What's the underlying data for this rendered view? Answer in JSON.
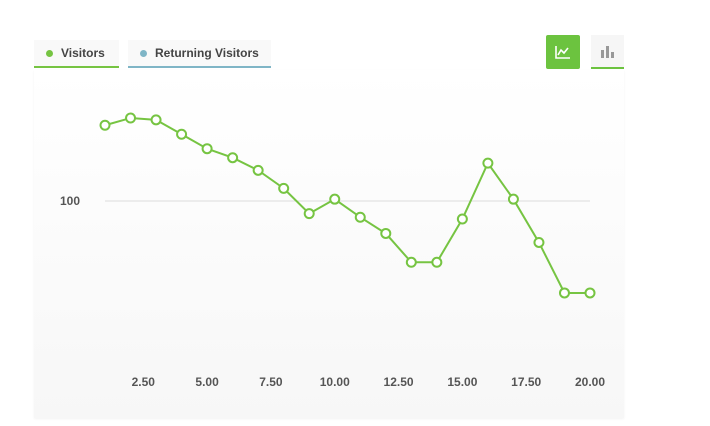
{
  "tabs": [
    {
      "label": "Visitors",
      "color": "#76c442"
    },
    {
      "label": "Returning Visitors",
      "color": "#7fb5c6"
    }
  ],
  "view_buttons": [
    {
      "icon": "line-chart-icon",
      "active": true
    },
    {
      "icon": "bar-chart-icon",
      "active": false
    }
  ],
  "colors": {
    "accent": "#6cc33f",
    "series": "#76c442"
  },
  "chart_data": {
    "type": "line",
    "title": "",
    "xlabel": "",
    "ylabel": "",
    "xlim": [
      1,
      20
    ],
    "ylim": [
      67,
      128
    ],
    "x_ticks": [
      "2.50",
      "5.00",
      "7.50",
      "10.00",
      "12.50",
      "15.00",
      "17.50",
      "20.00"
    ],
    "y_ticks": [
      "100"
    ],
    "grid": "horizontal line at 100",
    "series": [
      {
        "x": [
          1,
          2,
          3,
          4,
          5,
          6,
          7,
          8,
          9,
          10,
          11,
          12,
          13,
          14,
          15,
          16,
          17,
          18,
          19,
          20
        ],
        "values": [
          121,
          123,
          122.5,
          118.5,
          114.5,
          112,
          108.5,
          103.5,
          96.5,
          100.5,
          95.5,
          91,
          83,
          83,
          95,
          110.5,
          100.5,
          88.5,
          74.5,
          74.5
        ]
      }
    ]
  }
}
